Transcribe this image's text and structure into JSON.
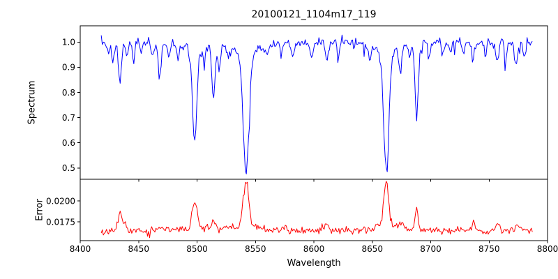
{
  "title": "20100121_1104m17_119",
  "xlabel": "Wavelength",
  "ylabel_top": "Spectrum",
  "ylabel_bottom": "Error",
  "colors": {
    "spectrum_line": "#0000ff",
    "error_line": "#ff0000",
    "axis": "#000000",
    "background": "#ffffff"
  },
  "chart_data": [
    {
      "type": "line",
      "panel": "top",
      "title": "20100121_1104m17_119",
      "ylabel": "Spectrum",
      "xlim": [
        8400,
        8800
      ],
      "ylim": [
        0.455,
        1.065
      ],
      "x_range": [
        8418,
        8787
      ],
      "x_step": 0.9,
      "xticks": [
        8400,
        8450,
        8500,
        8550,
        8600,
        8650,
        8700,
        8750,
        8800
      ],
      "yticks": [
        1.0,
        0.9,
        0.8,
        0.7,
        0.6,
        0.5
      ],
      "ytick_labels": [
        "1.0",
        "0.9",
        "0.8",
        "0.7",
        "0.6",
        "0.5"
      ],
      "grid": false,
      "legend": false,
      "color": "#0000ff",
      "baseline": 1.0,
      "noise_sigma": 0.01,
      "spike_prob": 0.06,
      "spike_max": 0.05,
      "direction": -1,
      "seed": 7,
      "features": [
        [
          8424,
          0.05,
          1.0
        ],
        [
          8428,
          0.08,
          1.0
        ],
        [
          8434,
          0.17,
          1.3
        ],
        [
          8440,
          0.06,
          1.0
        ],
        [
          8446,
          0.05,
          1.0
        ],
        [
          8452,
          0.04,
          1.0
        ],
        [
          8462,
          0.05,
          1.0
        ],
        [
          8468,
          0.14,
          1.3
        ],
        [
          8476,
          0.05,
          1.0
        ],
        [
          8484,
          0.06,
          1.0
        ],
        [
          8498,
          0.34,
          1.8
        ],
        [
          8506,
          0.05,
          1.0
        ],
        [
          8514,
          0.21,
          1.4
        ],
        [
          8519,
          0.1,
          1.0
        ],
        [
          8527,
          0.05,
          1.0
        ],
        [
          8542,
          0.46,
          2.4
        ],
        [
          8560,
          0.04,
          1.0
        ],
        [
          8572,
          0.05,
          1.0
        ],
        [
          8582,
          0.06,
          1.0
        ],
        [
          8598,
          0.07,
          1.2
        ],
        [
          8611,
          0.07,
          1.2
        ],
        [
          8621,
          0.06,
          1.0
        ],
        [
          8648,
          0.05,
          1.0
        ],
        [
          8662,
          0.455,
          2.2
        ],
        [
          8674,
          0.1,
          1.2
        ],
        [
          8682,
          0.06,
          1.0
        ],
        [
          8688,
          0.29,
          1.4
        ],
        [
          8699,
          0.05,
          1.0
        ],
        [
          8710,
          0.06,
          1.0
        ],
        [
          8717,
          0.05,
          1.0
        ],
        [
          8728,
          0.05,
          1.0
        ],
        [
          8736,
          0.07,
          1.2
        ],
        [
          8747,
          0.05,
          1.0
        ],
        [
          8757,
          0.08,
          1.2
        ],
        [
          8764,
          0.06,
          1.0
        ],
        [
          8773,
          0.09,
          1.2
        ],
        [
          8780,
          0.06,
          1.0
        ]
      ],
      "wings": [
        [
          8498,
          0.05,
          6
        ],
        [
          8542,
          0.06,
          9
        ],
        [
          8662,
          0.06,
          8
        ]
      ]
    },
    {
      "type": "line",
      "panel": "bottom",
      "ylabel": "Error",
      "xlim": [
        8400,
        8800
      ],
      "ylim": [
        0.01525,
        0.0226
      ],
      "x_range": [
        8418,
        8787
      ],
      "x_step": 0.9,
      "xticks": [
        8400,
        8450,
        8500,
        8550,
        8600,
        8650,
        8700,
        8750,
        8800
      ],
      "xtick_labels": [
        "8400",
        "8450",
        "8500",
        "8550",
        "8600",
        "8650",
        "8700",
        "8750",
        "8800"
      ],
      "yticks": [
        0.02,
        0.0175
      ],
      "ytick_labels": [
        "0.0200",
        "0.0175"
      ],
      "grid": false,
      "legend": false,
      "color": "#ff0000",
      "baseline": 0.0164,
      "noise_sigma": 0.00022,
      "spike_prob": 0.05,
      "spike_max": 0.0007,
      "direction": 1,
      "seed": 11,
      "features": [
        [
          8434,
          0.0022,
          1.5
        ],
        [
          8438,
          0.001,
          1.0
        ],
        [
          8468,
          0.0006,
          1.5
        ],
        [
          8498,
          0.003,
          2.0
        ],
        [
          8514,
          0.0012,
          1.5
        ],
        [
          8542,
          0.0051,
          2.2
        ],
        [
          8610,
          0.0006,
          2.0
        ],
        [
          8662,
          0.0048,
          2.0
        ],
        [
          8675,
          0.0008,
          1.5
        ],
        [
          8688,
          0.0026,
          1.3
        ],
        [
          8736,
          0.0006,
          1.5
        ],
        [
          8757,
          0.0007,
          1.5
        ],
        [
          8775,
          0.0008,
          2.0
        ]
      ],
      "wings": [
        [
          8498,
          0.0005,
          8
        ],
        [
          8542,
          0.0009,
          8
        ],
        [
          8662,
          0.0009,
          8
        ]
      ]
    }
  ]
}
